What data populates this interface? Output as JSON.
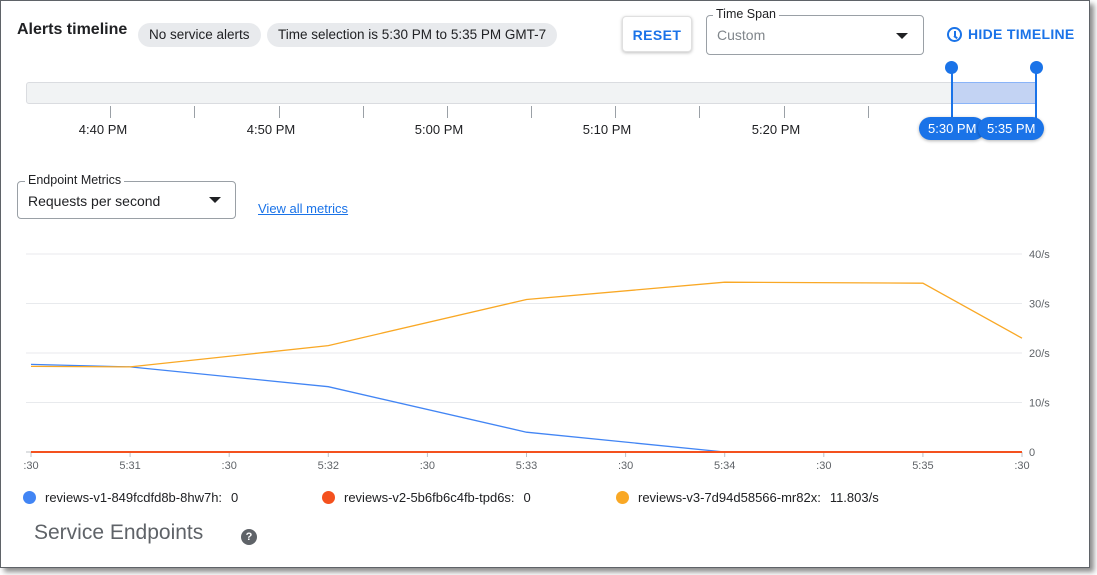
{
  "header": {
    "title": "Alerts timeline",
    "alerts_chip": "No service alerts",
    "selection_chip": "Time selection is 5:30 PM to 5:35 PM GMT-7",
    "reset_label": "RESET",
    "time_span_label": "Time Span",
    "time_span_value": "Custom",
    "hide_timeline_label": "HIDE TIMELINE"
  },
  "timeline": {
    "tick_labels": [
      "4:40 PM",
      "4:50 PM",
      "5:00 PM",
      "5:10 PM",
      "5:20 PM"
    ],
    "selection_start": "5:30 PM",
    "selection_end": "5:35 PM"
  },
  "metrics": {
    "label": "Endpoint Metrics",
    "value": "Requests per second",
    "view_all_label": "View all metrics"
  },
  "chart_data": {
    "type": "line",
    "x": [
      ":30",
      "5:31",
      ":30",
      "5:32",
      ":30",
      "5:33",
      ":30",
      "5:34",
      ":30",
      "5:35",
      ":30"
    ],
    "ylim": [
      0,
      40
    ],
    "y_tick_labels": [
      "0",
      "10/s",
      "20/s",
      "30/s",
      "40/s"
    ],
    "y_ticks": [
      0,
      10,
      20,
      30,
      40
    ],
    "grid": true,
    "series": [
      {
        "name": "reviews-v1-849fcdfd8b-8hw7h",
        "color": "#4285f4",
        "points": [
          [
            0,
            17.7
          ],
          [
            1,
            17.2
          ],
          [
            3,
            13.2
          ],
          [
            5,
            4.0
          ],
          [
            7,
            0
          ],
          [
            10,
            0
          ]
        ]
      },
      {
        "name": "reviews-v2-5b6fb6c4fb-tpd6s",
        "color": "#f4511e",
        "points": [
          [
            0,
            0
          ],
          [
            10,
            0
          ]
        ]
      },
      {
        "name": "reviews-v3-7d94d58566-mr82x",
        "color": "#f9a825",
        "points": [
          [
            0,
            17.3
          ],
          [
            1,
            17.2
          ],
          [
            3,
            21.5
          ],
          [
            5,
            30.8
          ],
          [
            7,
            34.3
          ],
          [
            9,
            34.1
          ],
          [
            10,
            23.0
          ]
        ]
      }
    ]
  },
  "legend": [
    {
      "name": "reviews-v1-849fcdfd8b-8hw7h:",
      "value": "0",
      "color": "#4285f4"
    },
    {
      "name": "reviews-v2-5b6fb6c4fb-tpd6s:",
      "value": "0",
      "color": "#f4511e"
    },
    {
      "name": "reviews-v3-7d94d58566-mr82x:",
      "value": "11.803/s",
      "color": "#f9a825"
    }
  ],
  "service_endpoints": {
    "title": "Service Endpoints",
    "help_icon": "help-circle-icon",
    "help_glyph": "?"
  }
}
